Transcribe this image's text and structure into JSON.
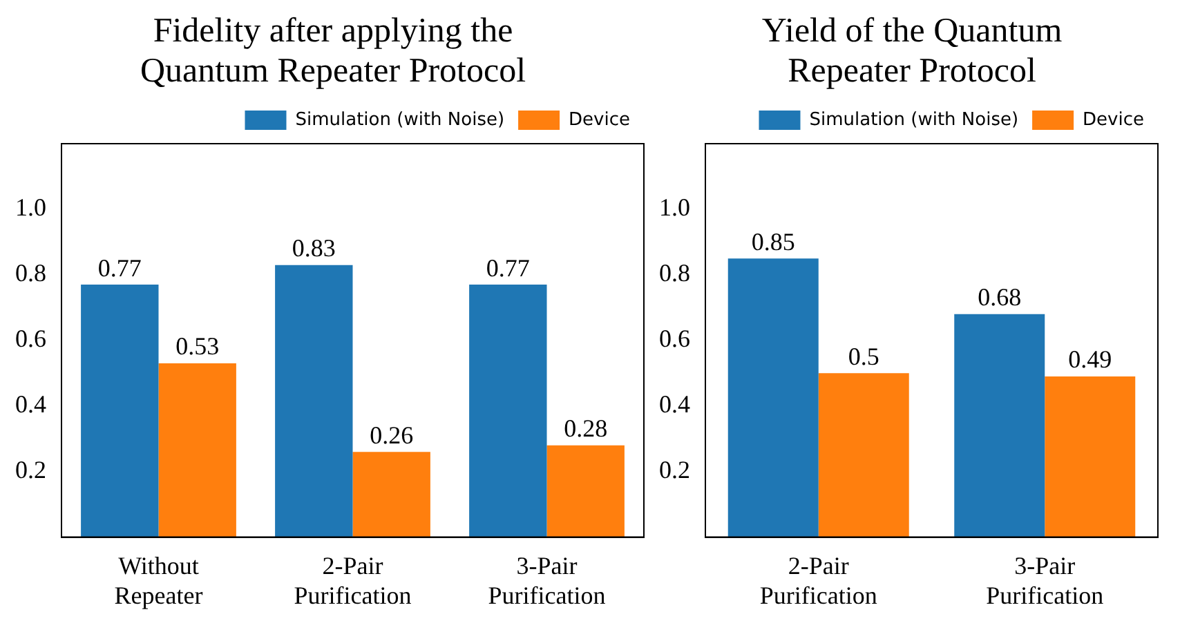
{
  "chart_data": [
    {
      "type": "bar",
      "title": "Fidelity after applying the Quantum Repeater Protocol",
      "categories": [
        "Without Repeater",
        "2-Pair Purification",
        "3-Pair Purification"
      ],
      "series": [
        {
          "name": "Simulation (with Noise)",
          "color": "#1f77b4",
          "values": [
            0.77,
            0.83,
            0.77
          ]
        },
        {
          "name": "Device",
          "color": "#ff7f0e",
          "values": [
            0.53,
            0.26,
            0.28
          ]
        }
      ],
      "ylim": [
        0,
        1.2
      ],
      "yticks": [
        0.2,
        0.4,
        0.6,
        0.8,
        {
          "value": 1.0,
          "label": "1.0"
        }
      ],
      "grid": false,
      "legend": "top right",
      "data_labels": true
    },
    {
      "type": "bar",
      "title": "Yield of the Quantum Repeater Protocol",
      "categories": [
        "2-Pair Purification",
        "3-Pair Purification"
      ],
      "series": [
        {
          "name": "Simulation (with Noise)",
          "color": "#1f77b4",
          "values": [
            0.85,
            0.68
          ]
        },
        {
          "name": "Device",
          "color": "#ff7f0e",
          "values": [
            0.5,
            0.49
          ]
        }
      ],
      "ylim": [
        0,
        1.2
      ],
      "yticks": [
        0.2,
        0.4,
        0.6,
        0.8,
        {
          "value": 1.0,
          "label": "1.0"
        }
      ],
      "grid": false,
      "legend": "top right",
      "data_labels": true
    }
  ]
}
